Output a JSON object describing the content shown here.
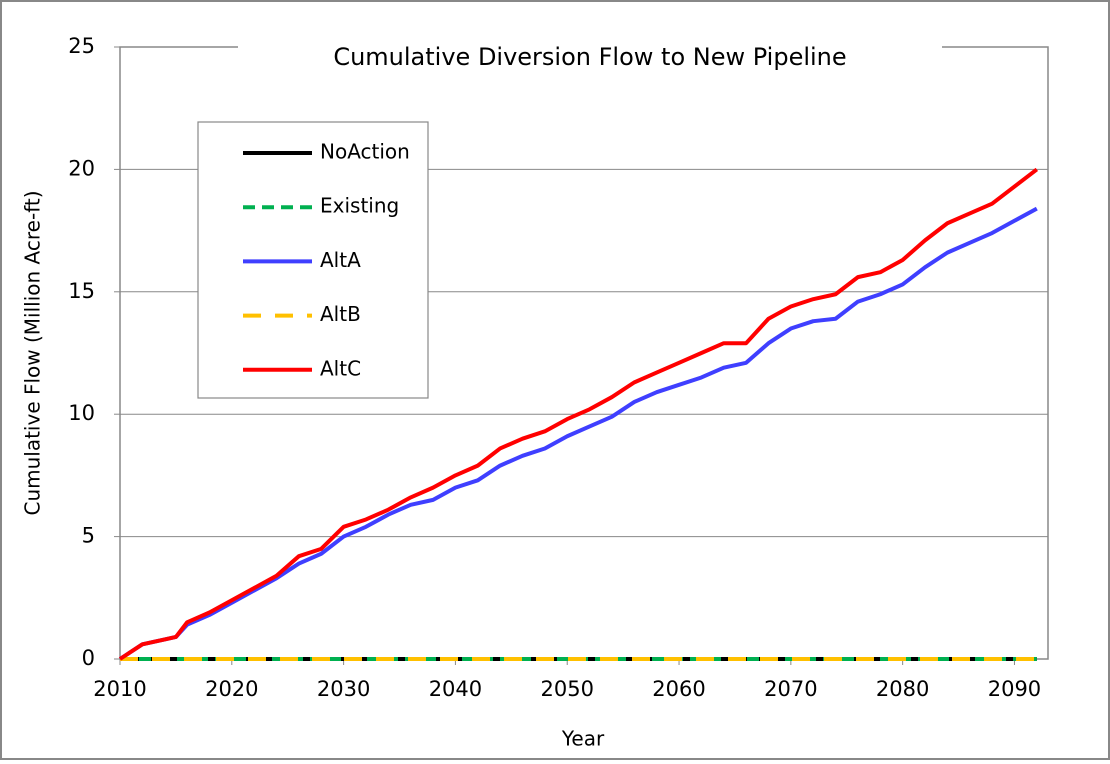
{
  "chart_data": {
    "type": "line",
    "title": "Cumulative Diversion Flow to New Pipeline",
    "x_label": "Year",
    "y_label": "Cumulative Flow (Million Acre-ft)",
    "x": [
      2010,
      2012,
      2014,
      2015,
      2016,
      2018,
      2020,
      2022,
      2024,
      2026,
      2028,
      2030,
      2032,
      2034,
      2036,
      2038,
      2040,
      2042,
      2044,
      2046,
      2048,
      2050,
      2052,
      2054,
      2056,
      2058,
      2060,
      2062,
      2064,
      2066,
      2068,
      2070,
      2072,
      2074,
      2076,
      2078,
      2080,
      2082,
      2084,
      2086,
      2088,
      2090,
      2092
    ],
    "series": [
      {
        "name": "NoAction",
        "color": "#000000",
        "line_style": "solid",
        "values": [
          0,
          0,
          0,
          0,
          0,
          0,
          0,
          0,
          0,
          0,
          0,
          0,
          0,
          0,
          0,
          0,
          0,
          0,
          0,
          0,
          0,
          0,
          0,
          0,
          0,
          0,
          0,
          0,
          0,
          0,
          0,
          0,
          0,
          0,
          0,
          0,
          0,
          0,
          0,
          0,
          0,
          0,
          0
        ]
      },
      {
        "name": "Existing",
        "color": "#00b050",
        "line_style": "dashed",
        "values": [
          0,
          0,
          0,
          0,
          0,
          0,
          0,
          0,
          0,
          0,
          0,
          0,
          0,
          0,
          0,
          0,
          0,
          0,
          0,
          0,
          0,
          0,
          0,
          0,
          0,
          0,
          0,
          0,
          0,
          0,
          0,
          0,
          0,
          0,
          0,
          0,
          0,
          0,
          0,
          0,
          0,
          0,
          0
        ]
      },
      {
        "name": "AltA",
        "color": "#3f3fff",
        "line_style": "solid",
        "values": [
          0,
          0.6,
          0.8,
          0.9,
          1.4,
          1.8,
          2.3,
          2.8,
          3.3,
          3.9,
          4.3,
          5.0,
          5.4,
          5.9,
          6.3,
          6.5,
          7.0,
          7.3,
          7.9,
          8.3,
          8.6,
          9.1,
          9.5,
          9.9,
          10.5,
          10.9,
          11.2,
          11.5,
          11.9,
          12.1,
          12.9,
          13.5,
          13.8,
          13.9,
          14.6,
          14.9,
          15.3,
          16.0,
          16.6,
          17.0,
          17.4,
          17.9,
          18.4
        ]
      },
      {
        "name": "AltB",
        "color": "#ffc000",
        "line_style": "long-dash",
        "values": [
          0,
          0,
          0,
          0,
          0,
          0,
          0,
          0,
          0,
          0,
          0,
          0,
          0,
          0,
          0,
          0,
          0,
          0,
          0,
          0,
          0,
          0,
          0,
          0,
          0,
          0,
          0,
          0,
          0,
          0,
          0,
          0,
          0,
          0,
          0,
          0,
          0,
          0,
          0,
          0,
          0,
          0,
          0
        ]
      },
      {
        "name": "AltC",
        "color": "#ff0000",
        "line_style": "solid",
        "values": [
          0,
          0.6,
          0.8,
          0.9,
          1.5,
          1.9,
          2.4,
          2.9,
          3.4,
          4.2,
          4.5,
          5.4,
          5.7,
          6.1,
          6.6,
          7.0,
          7.5,
          7.9,
          8.6,
          9.0,
          9.3,
          9.8,
          10.2,
          10.7,
          11.3,
          11.7,
          12.1,
          12.5,
          12.9,
          12.9,
          13.9,
          14.4,
          14.7,
          14.9,
          15.6,
          15.8,
          16.3,
          17.1,
          17.8,
          18.2,
          18.6,
          19.3,
          20.0
        ]
      }
    ],
    "xlim": [
      2010,
      2093
    ],
    "xticks": [
      2010,
      2020,
      2030,
      2040,
      2050,
      2060,
      2070,
      2080,
      2090
    ],
    "ylim": [
      0,
      25
    ],
    "yticks": [
      0,
      5,
      10,
      15,
      20,
      25
    ],
    "grid": true
  }
}
